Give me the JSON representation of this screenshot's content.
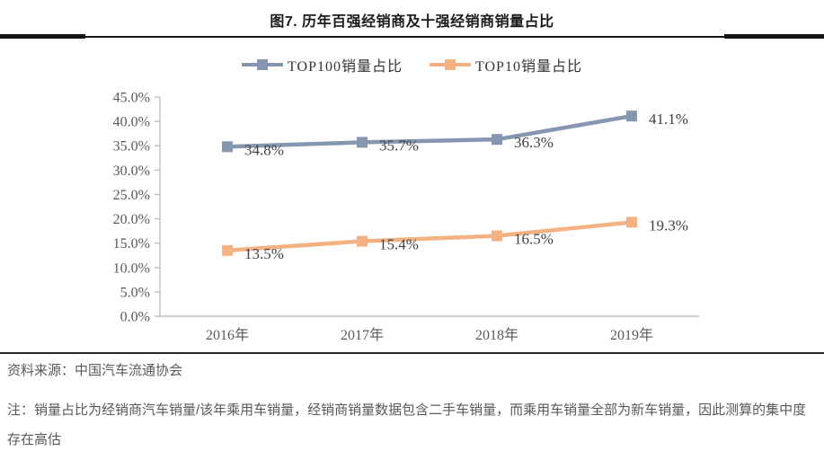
{
  "title": "图7. 历年百强经销商及十强经销商销量占比",
  "colors": {
    "top100_series": "#8496B0",
    "top10_series": "#F4B183",
    "axis_line": "#C0C0C0",
    "tick_label": "#595959",
    "data_label": "#404040"
  },
  "chart_data": {
    "type": "line",
    "categories": [
      "2016年",
      "2017年",
      "2018年",
      "2019年"
    ],
    "series": [
      {
        "name": "TOP100销量占比",
        "color": "#8496B0",
        "values": [
          34.8,
          35.7,
          36.3,
          41.1
        ],
        "labels": [
          "34.8%",
          "35.7%",
          "36.3%",
          "41.1%"
        ]
      },
      {
        "name": "TOP10销量占比",
        "color": "#F4B183",
        "values": [
          13.5,
          15.4,
          16.5,
          19.3
        ],
        "labels": [
          "13.5%",
          "15.4%",
          "16.5%",
          "19.3%"
        ]
      }
    ],
    "ylim": [
      0,
      45
    ],
    "ytick_step": 5,
    "ytick_labels": [
      "0.0%",
      "5.0%",
      "10.0%",
      "15.0%",
      "20.0%",
      "25.0%",
      "30.0%",
      "35.0%",
      "40.0%",
      "45.0%"
    ],
    "grid": false,
    "legend_position": "top",
    "marker": "square"
  },
  "footer": {
    "source": "资料来源：中国汽车流通协会",
    "note": "注：销量占比为经销商汽车销量/该年乘用车销量，经销商销量数据包含二手车销量，而乘用车销量全部为新车销量，因此测算的集中度存在高估"
  }
}
